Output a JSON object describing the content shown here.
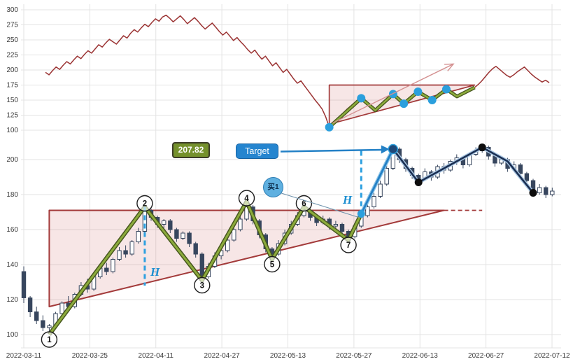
{
  "chart_data": [
    {
      "panel": "top",
      "type": "line",
      "name": "price-overview",
      "color": "#9b3333",
      "ylim": [
        95,
        305
      ],
      "y_ticks": [
        300,
        275,
        250,
        225,
        200,
        175,
        150,
        125,
        100
      ],
      "values": [
        196,
        192,
        199,
        205,
        201,
        208,
        214,
        210,
        217,
        223,
        219,
        226,
        232,
        228,
        235,
        242,
        238,
        245,
        251,
        247,
        243,
        250,
        257,
        253,
        261,
        267,
        263,
        270,
        276,
        272,
        279,
        285,
        281,
        288,
        291,
        286,
        280,
        285,
        290,
        284,
        277,
        282,
        287,
        281,
        274,
        268,
        273,
        278,
        271,
        264,
        258,
        263,
        256,
        249,
        254,
        247,
        241,
        234,
        228,
        233,
        225,
        218,
        223,
        215,
        207,
        212,
        204,
        196,
        201,
        193,
        185,
        178,
        182,
        174,
        166,
        158,
        150,
        143,
        135,
        122,
        105,
        111,
        117,
        123,
        129,
        135,
        140,
        145,
        149,
        153,
        148,
        143,
        138,
        133,
        139,
        145,
        150,
        155,
        160,
        155,
        149,
        144,
        149,
        154,
        159,
        164,
        160,
        157,
        153,
        150,
        155,
        159,
        164,
        168,
        164,
        160,
        156,
        159,
        162,
        165,
        168,
        171,
        176,
        182,
        189,
        196,
        202,
        206,
        201,
        196,
        191,
        188,
        192,
        197,
        201,
        205,
        199,
        193,
        188,
        184,
        180,
        183,
        179
      ],
      "pattern": {
        "triangle": {
          "start_i": 80,
          "apex_i": 121,
          "resistance": 175,
          "support_start": 110
        },
        "zigzag": [
          [
            80,
            105
          ],
          [
            89,
            153
          ],
          [
            93,
            133
          ],
          [
            98,
            160
          ],
          [
            101,
            144
          ],
          [
            105,
            164
          ],
          [
            109,
            150
          ],
          [
            113,
            168
          ],
          [
            116,
            156
          ],
          [
            121,
            171
          ]
        ],
        "dots_i": [
          80,
          89,
          98,
          101,
          105,
          109,
          113
        ],
        "dot_color": "#2b9fdd",
        "arrow": {
          "from": [
            81,
            112
          ],
          "to": [
            115,
            210
          ],
          "color": "#d49090"
        }
      }
    },
    {
      "panel": "bottom",
      "type": "candlestick",
      "name": "daily-candles",
      "ylim": [
        95,
        215
      ],
      "y_ticks": [
        200,
        180,
        160,
        140,
        120,
        100
      ],
      "x_tick_labels": [
        "2022-03-11",
        "2022-03-25",
        "2022-04-11",
        "2022-04-27",
        "2022-05-13",
        "2022-05-27",
        "2022-06-13",
        "2022-06-27",
        "2022-07-12"
      ],
      "up_color": "#ffffff",
      "down_color": "#37465e",
      "candles": [
        [
          136,
          139,
          118,
          121
        ],
        [
          121,
          122,
          110,
          113
        ],
        [
          113,
          116,
          106,
          108
        ],
        [
          108,
          111,
          102,
          104
        ],
        [
          104,
          106,
          100,
          105
        ],
        [
          105,
          113,
          104,
          112
        ],
        [
          112,
          119,
          111,
          118
        ],
        [
          118,
          122,
          114,
          116
        ],
        [
          116,
          124,
          115,
          123
        ],
        [
          123,
          130,
          122,
          128
        ],
        [
          128,
          132,
          124,
          126
        ],
        [
          126,
          134,
          125,
          133
        ],
        [
          133,
          140,
          132,
          138
        ],
        [
          138,
          141,
          134,
          136
        ],
        [
          136,
          144,
          135,
          143
        ],
        [
          143,
          150,
          142,
          148
        ],
        [
          148,
          151,
          144,
          146
        ],
        [
          146,
          154,
          145,
          153
        ],
        [
          153,
          161,
          152,
          159
        ],
        [
          159,
          173,
          158,
          171
        ],
        [
          171,
          172,
          165,
          167
        ],
        [
          167,
          168,
          161,
          163
        ],
        [
          163,
          166,
          160,
          165
        ],
        [
          165,
          166,
          158,
          160
        ],
        [
          160,
          161,
          153,
          155
        ],
        [
          155,
          159,
          154,
          158
        ],
        [
          158,
          159,
          150,
          152
        ],
        [
          152,
          153,
          144,
          146
        ],
        [
          146,
          147,
          131,
          133
        ],
        [
          133,
          141,
          132,
          139
        ],
        [
          139,
          147,
          138,
          145
        ],
        [
          145,
          150,
          143,
          148
        ],
        [
          148,
          156,
          147,
          154
        ],
        [
          154,
          162,
          153,
          160
        ],
        [
          160,
          168,
          159,
          166
        ],
        [
          166,
          176,
          165,
          173
        ],
        [
          173,
          174,
          163,
          165
        ],
        [
          165,
          166,
          155,
          157
        ],
        [
          157,
          158,
          147,
          149
        ],
        [
          149,
          150,
          143,
          146
        ],
        [
          146,
          154,
          145,
          152
        ],
        [
          152,
          160,
          151,
          158
        ],
        [
          158,
          165,
          157,
          163
        ],
        [
          163,
          170,
          162,
          168
        ],
        [
          168,
          173,
          167,
          171
        ],
        [
          171,
          172,
          165,
          167
        ],
        [
          167,
          169,
          162,
          164
        ],
        [
          164,
          168,
          163,
          166
        ],
        [
          166,
          167,
          160,
          162
        ],
        [
          162,
          165,
          159,
          163
        ],
        [
          163,
          164,
          157,
          159
        ],
        [
          159,
          160,
          154,
          156
        ],
        [
          156,
          164,
          155,
          162
        ],
        [
          162,
          170,
          161,
          168
        ],
        [
          168,
          175,
          167,
          173
        ],
        [
          173,
          181,
          172,
          179
        ],
        [
          179,
          188,
          178,
          186
        ],
        [
          186,
          197,
          185,
          195
        ],
        [
          195,
          208,
          194,
          206
        ],
        [
          206,
          207,
          198,
          200
        ],
        [
          200,
          201,
          193,
          195
        ],
        [
          195,
          196,
          189,
          191
        ],
        [
          191,
          192,
          186,
          189
        ],
        [
          189,
          195,
          188,
          193
        ],
        [
          193,
          194,
          188,
          190
        ],
        [
          190,
          197,
          189,
          196
        ],
        [
          196,
          198,
          192,
          194
        ],
        [
          194,
          200,
          193,
          199
        ],
        [
          199,
          203,
          197,
          201
        ],
        [
          201,
          202,
          195,
          197
        ],
        [
          197,
          204,
          196,
          203
        ],
        [
          203,
          207,
          202,
          205
        ],
        [
          205,
          208,
          204,
          207
        ],
        [
          207,
          208,
          200,
          202
        ],
        [
          202,
          203,
          196,
          198
        ],
        [
          198,
          202,
          197,
          200
        ],
        [
          200,
          201,
          193,
          195
        ],
        [
          195,
          199,
          194,
          197
        ],
        [
          197,
          198,
          190,
          192
        ],
        [
          192,
          193,
          186,
          188
        ],
        [
          188,
          189,
          179,
          181
        ],
        [
          181,
          186,
          180,
          184
        ],
        [
          184,
          185,
          178,
          180
        ],
        [
          180,
          184,
          179,
          182
        ]
      ],
      "pattern": {
        "triangle": {
          "start_i": 4,
          "apex_i": 66,
          "resistance": 171,
          "support_start": 116,
          "dash_ext_i": 72
        },
        "zigzag": [
          [
            4,
            100
          ],
          [
            19,
            173
          ],
          [
            28,
            131
          ],
          [
            35,
            176
          ],
          [
            39,
            143
          ],
          [
            44,
            173
          ],
          [
            51,
            154
          ],
          [
            53,
            169
          ]
        ],
        "pivot_labels": [
          "1",
          "2",
          "3",
          "4",
          "5",
          "6",
          "7"
        ],
        "breakout_line": [
          [
            53,
            169
          ],
          [
            58,
            206
          ]
        ],
        "breakout_dot": [
          53,
          169
        ],
        "target_dot": [
          58,
          206
        ],
        "post_line": [
          [
            58,
            206
          ],
          [
            62,
            187
          ],
          [
            72,
            207
          ],
          [
            76,
            199
          ],
          [
            80,
            181
          ]
        ],
        "post_dots": [
          [
            62,
            187
          ],
          [
            72,
            207
          ],
          [
            80,
            181
          ]
        ],
        "h_lines": [
          {
            "i": 19,
            "p1": 173,
            "p2": 128
          },
          {
            "i": 53,
            "p1": 205,
            "p2": 169
          }
        ]
      }
    }
  ],
  "annotations": {
    "price_badge": "207.82",
    "target_label": "Target",
    "buy_label": "买1",
    "h_label": "H"
  },
  "colors": {
    "grid": "#e3e3e3",
    "axis_text": "#3c3c3c",
    "triangle_stroke": "#a33a3a",
    "triangle_fill": "rgba(205,100,100,0.16)",
    "zigzag": "#8cab3c",
    "zigzag_edge": "#47571e",
    "breakout": "#2481c6",
    "breakout_halo": "#8cc4e8",
    "post": "#1b2f52",
    "post_halo": "#a9c6e2",
    "dashed_h": "#2da0e0",
    "dot_blue": "#2b9fdd",
    "dot_black": "#0d0d0d",
    "target_dot_fill": "#1d4879"
  }
}
